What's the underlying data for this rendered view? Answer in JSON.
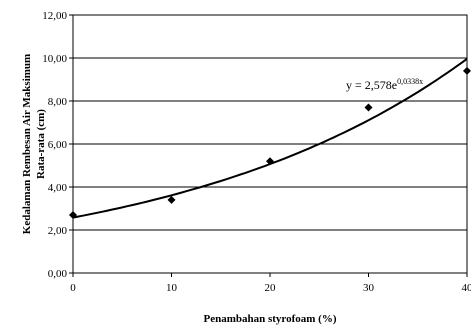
{
  "chart_data": {
    "type": "scatter",
    "xlabel": "Penambahan styrofoam (%)",
    "ylabel_line1": "Kedalaman Rembesan Air Maksimum",
    "ylabel_line2": "Rata-rata (cm)",
    "xlim": [
      0,
      40
    ],
    "ylim": [
      0,
      12
    ],
    "x_ticks": [
      "0",
      "10",
      "20",
      "30",
      "40"
    ],
    "y_ticks": [
      "0,00",
      "2,00",
      "4,00",
      "6,00",
      "8,00",
      "10,00",
      "12,00"
    ],
    "grid": "horizontal",
    "series": [
      {
        "points": [
          {
            "x": 0,
            "y": 2.7
          },
          {
            "x": 10,
            "y": 3.4
          },
          {
            "x": 20,
            "y": 5.2
          },
          {
            "x": 30,
            "y": 7.7
          },
          {
            "x": 40,
            "y": 9.4
          }
        ]
      }
    ],
    "trendline": {
      "type": "exponential",
      "a": 2.578,
      "b": 0.0338,
      "equation_base": "y = 2,578e",
      "equation_exponent": "0,0338x"
    }
  }
}
